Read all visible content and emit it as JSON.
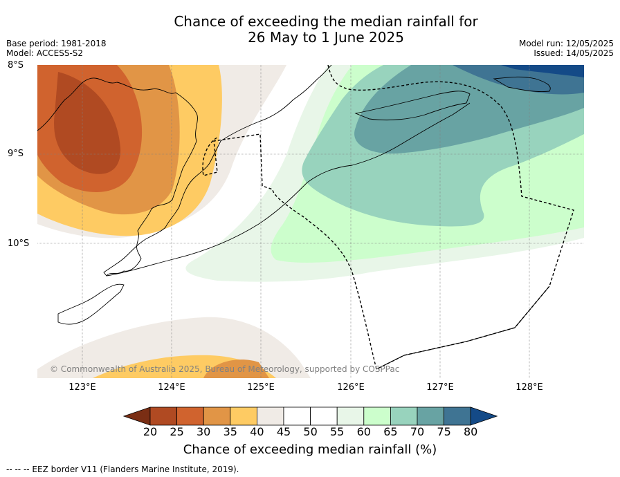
{
  "title": {
    "line1": "Chance of exceeding the median rainfall for",
    "line2": "26 May to 1 June 2025"
  },
  "meta": {
    "base_period": "Base period: 1981-2018",
    "model": "Model: ACCESS-S2",
    "model_run": "Model run: 12/05/2025",
    "issued": "Issued: 14/05/2025"
  },
  "map": {
    "lat_labels": [
      "8°S",
      "9°S",
      "10°S"
    ],
    "lon_labels": [
      "123°E",
      "124°E",
      "125°E",
      "126°E",
      "127°E",
      "128°E"
    ],
    "copyright": "© Commonwealth of Australia 2025, Bureau of Meteorology, supported by COSPPac",
    "extent": {
      "lon": [
        122.5,
        128.6
      ],
      "lat": [
        -11.5,
        -8.0
      ]
    }
  },
  "colorbar": {
    "ticks": [
      "20",
      "25",
      "30",
      "35",
      "40",
      "45",
      "50",
      "55",
      "60",
      "65",
      "70",
      "75",
      "80"
    ],
    "colors": [
      "#7a2e14",
      "#b04a22",
      "#d0632e",
      "#e19546",
      "#fecb63",
      "#f0ebe6",
      "#ffffff",
      "#ffffff",
      "#e8f6e8",
      "#ccfecc",
      "#98d3bd",
      "#68a3a3",
      "#3f7493",
      "#144a87"
    ],
    "label": "Chance of exceeding median rainfall (%)"
  },
  "footnote": "-- -- -- EEZ border V11 (Flanders Marine Institute, 2019)."
}
